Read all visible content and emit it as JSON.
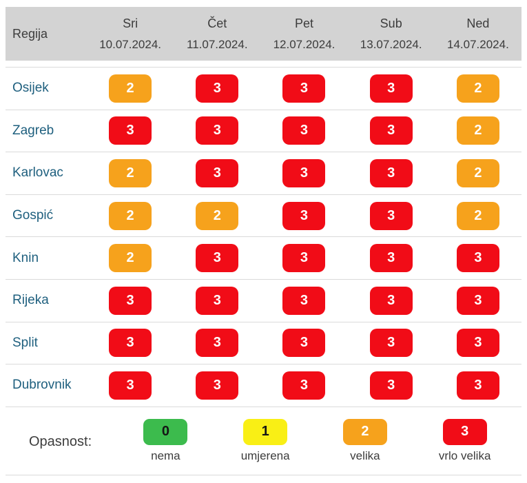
{
  "table": {
    "region_header": "Regija",
    "day_columns": [
      {
        "day": "Sri",
        "date": "10.07.2024."
      },
      {
        "day": "Čet",
        "date": "11.07.2024."
      },
      {
        "day": "Pet",
        "date": "12.07.2024."
      },
      {
        "day": "Sub",
        "date": "13.07.2024."
      },
      {
        "day": "Ned",
        "date": "14.07.2024."
      }
    ],
    "rows": [
      {
        "region": "Osijek",
        "values": [
          2,
          3,
          3,
          3,
          2
        ]
      },
      {
        "region": "Zagreb",
        "values": [
          3,
          3,
          3,
          3,
          2
        ]
      },
      {
        "region": "Karlovac",
        "values": [
          2,
          3,
          3,
          3,
          2
        ]
      },
      {
        "region": "Gospić",
        "values": [
          2,
          2,
          3,
          3,
          2
        ]
      },
      {
        "region": "Knin",
        "values": [
          2,
          3,
          3,
          3,
          3
        ]
      },
      {
        "region": "Rijeka",
        "values": [
          3,
          3,
          3,
          3,
          3
        ]
      },
      {
        "region": "Split",
        "values": [
          3,
          3,
          3,
          3,
          3
        ]
      },
      {
        "region": "Dubrovnik",
        "values": [
          3,
          3,
          3,
          3,
          3
        ]
      }
    ]
  },
  "legend": {
    "label": "Opasnost:",
    "items": [
      {
        "value": "0",
        "label": "nema",
        "color": "#3cbb4d",
        "text_color": "#151515"
      },
      {
        "value": "1",
        "label": "umjerena",
        "color": "#f9ef15",
        "text_color": "#151515"
      },
      {
        "value": "2",
        "label": "velika",
        "color": "#f6a21c",
        "text_color": "#ffffff"
      },
      {
        "value": "3",
        "label": "vrlo velika",
        "color": "#f10c17",
        "text_color": "#ffffff"
      }
    ]
  },
  "colors": {
    "header_background": "#d3d3d3",
    "row_separator": "#dadada",
    "region_link": "#1e5f7e",
    "header_text": "#3c3c3c",
    "level_0": "#3cbb4d",
    "level_1": "#f9ef15",
    "level_2": "#f6a21c",
    "level_3": "#f10c17"
  },
  "chart_data": {
    "type": "heatmap",
    "columns": [
      "Regija",
      "Sri 10.07.2024.",
      "Čet 11.07.2024.",
      "Pet 12.07.2024.",
      "Sub 13.07.2024.",
      "Ned 14.07.2024."
    ],
    "rows": [
      [
        "Osijek",
        2,
        3,
        3,
        3,
        2
      ],
      [
        "Zagreb",
        3,
        3,
        3,
        3,
        2
      ],
      [
        "Karlovac",
        2,
        3,
        3,
        3,
        2
      ],
      [
        "Gospić",
        2,
        2,
        3,
        3,
        2
      ],
      [
        "Knin",
        2,
        3,
        3,
        3,
        3
      ],
      [
        "Rijeka",
        3,
        3,
        3,
        3,
        3
      ],
      [
        "Split",
        3,
        3,
        3,
        3,
        3
      ],
      [
        "Dubrovnik",
        3,
        3,
        3,
        3,
        3
      ]
    ],
    "value_scale": [
      {
        "value": 0,
        "meaning": "nema",
        "color": "#3cbb4d"
      },
      {
        "value": 1,
        "meaning": "umjerena",
        "color": "#f9ef15"
      },
      {
        "value": 2,
        "meaning": "velika",
        "color": "#f6a21c"
      },
      {
        "value": 3,
        "meaning": "vrlo velika",
        "color": "#f10c17"
      }
    ],
    "legend_position": "bottom",
    "legend_title": "Opasnost:"
  }
}
